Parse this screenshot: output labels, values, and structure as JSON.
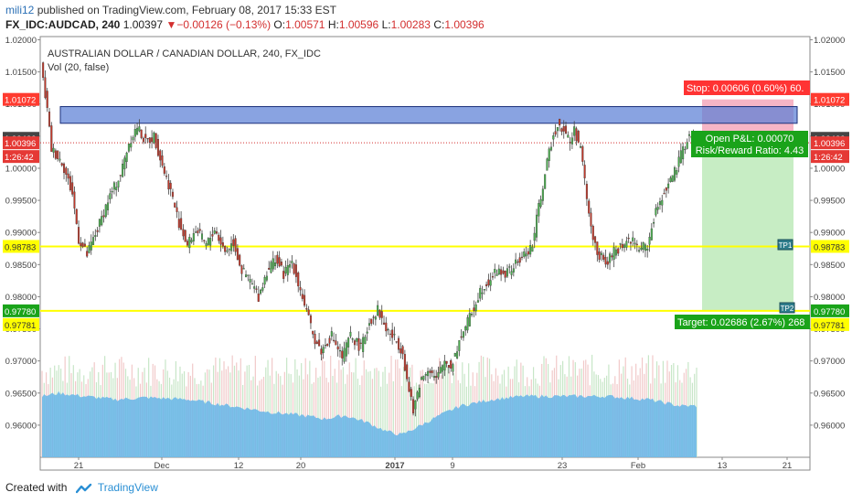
{
  "header": {
    "username": "mili12",
    "published_text": "published on TradingView.com, February 08, 2017 15:33 EST"
  },
  "ohlc": {
    "symbol": "FX_IDC:AUDCAD, 240",
    "last": "1.00397",
    "change": "−0.00126 (−0.13%)",
    "o_label": "O:",
    "o": "1.00571",
    "h_label": "H:",
    "h": "1.00596",
    "l_label": "L:",
    "l": "1.00283",
    "c_label": "C:",
    "c": "1.00396"
  },
  "footer": {
    "created_with": "Created with",
    "brand": "TradingView"
  },
  "colors": {
    "up": "#4caf50",
    "down": "#c0392b",
    "wick": "#444444",
    "vol_area": "#66b5e8",
    "resistance": "#5b7fd6",
    "support": "#ffff00",
    "target_zone": "#b9e8b5",
    "stop_zone": "#f4a3b8",
    "stop_label": "#ff3333",
    "target_label": "#1aa31a"
  },
  "chart_data": {
    "type": "candlestick",
    "title": "AUSTRALIAN DOLLAR / CANADIAN DOLLAR, 240, FX_IDC",
    "indicator": "Vol (20, false)",
    "ylim": [
      0.955,
      1.0205
    ],
    "yticks": [
      "1.02000",
      "1.01500",
      "1.01000",
      "1.00500",
      "1.00000",
      "0.99500",
      "0.99000",
      "0.98500",
      "0.98000",
      "0.97500",
      "0.97000",
      "0.96500",
      "0.96000"
    ],
    "xticks": [
      "21",
      "Dec",
      "12",
      "20",
      "2017",
      "9",
      "23",
      "Feb",
      "13",
      "21"
    ],
    "price_path": [
      [
        0,
        1.016
      ],
      [
        3,
        1.009
      ],
      [
        5,
        1.003
      ],
      [
        10,
        1.001
      ],
      [
        15,
        0.996
      ],
      [
        18,
        0.989
      ],
      [
        22,
        0.9865
      ],
      [
        27,
        0.9905
      ],
      [
        32,
        0.995
      ],
      [
        38,
        0.999
      ],
      [
        42,
        1.004
      ],
      [
        46,
        1.0065
      ],
      [
        50,
        1.004
      ],
      [
        54,
        1.005
      ],
      [
        58,
        1.0005
      ],
      [
        62,
        0.9965
      ],
      [
        66,
        0.9915
      ],
      [
        70,
        0.988
      ],
      [
        74,
        0.9905
      ],
      [
        79,
        0.988
      ],
      [
        83,
        0.9905
      ],
      [
        88,
        0.987
      ],
      [
        92,
        0.9885
      ],
      [
        96,
        0.984
      ],
      [
        100,
        0.9825
      ],
      [
        104,
        0.98
      ],
      [
        108,
        0.984
      ],
      [
        112,
        0.986
      ],
      [
        116,
        0.9835
      ],
      [
        120,
        0.9855
      ],
      [
        125,
        0.98
      ],
      [
        130,
        0.974
      ],
      [
        134,
        0.9715
      ],
      [
        139,
        0.974
      ],
      [
        144,
        0.9705
      ],
      [
        148,
        0.974
      ],
      [
        153,
        0.972
      ],
      [
        157,
        0.976
      ],
      [
        161,
        0.978
      ],
      [
        165,
        0.975
      ],
      [
        169,
        0.9735
      ],
      [
        173,
        0.9715
      ],
      [
        175,
        0.967
      ],
      [
        178,
        0.962
      ],
      [
        181,
        0.9665
      ],
      [
        185,
        0.969
      ],
      [
        189,
        0.967
      ],
      [
        193,
        0.97
      ],
      [
        196,
        0.969
      ],
      [
        201,
        0.974
      ],
      [
        206,
        0.9775
      ],
      [
        210,
        0.981
      ],
      [
        214,
        0.9825
      ],
      [
        218,
        0.984
      ],
      [
        222,
        0.9835
      ],
      [
        227,
        0.985
      ],
      [
        231,
        0.9865
      ],
      [
        235,
        0.988
      ],
      [
        238,
        0.994
      ],
      [
        241,
        0.999
      ],
      [
        244,
        1.004
      ],
      [
        247,
        1.007
      ],
      [
        250,
        1.006
      ],
      [
        253,
        1.004
      ],
      [
        255,
        1.006
      ],
      [
        258,
        1.003
      ],
      [
        260,
        0.998
      ],
      [
        263,
        0.9905
      ],
      [
        266,
        0.987
      ],
      [
        270,
        0.985
      ],
      [
        274,
        0.987
      ],
      [
        278,
        0.988
      ],
      [
        282,
        0.989
      ],
      [
        286,
        0.9875
      ],
      [
        290,
        0.988
      ],
      [
        293,
        0.992
      ],
      [
        296,
        0.995
      ],
      [
        300,
        0.9975
      ],
      [
        304,
        1.0
      ],
      [
        307,
        1.003
      ],
      [
        310,
        1.005
      ],
      [
        313,
        1.004
      ]
    ],
    "volume_area": [
      [
        0,
        0.9645
      ],
      [
        8,
        0.965
      ],
      [
        20,
        0.9645
      ],
      [
        35,
        0.964
      ],
      [
        50,
        0.9643
      ],
      [
        70,
        0.964
      ],
      [
        90,
        0.963
      ],
      [
        110,
        0.962
      ],
      [
        125,
        0.9615
      ],
      [
        135,
        0.961
      ],
      [
        145,
        0.9615
      ],
      [
        155,
        0.9605
      ],
      [
        165,
        0.959
      ],
      [
        172,
        0.9585
      ],
      [
        180,
        0.9598
      ],
      [
        190,
        0.9615
      ],
      [
        200,
        0.963
      ],
      [
        215,
        0.964
      ],
      [
        230,
        0.9645
      ],
      [
        250,
        0.9645
      ],
      [
        270,
        0.9645
      ],
      [
        290,
        0.964
      ],
      [
        305,
        0.963
      ],
      [
        313,
        0.963
      ]
    ],
    "resistance_zone": {
      "from": 1.007,
      "to": 1.0096
    },
    "support_lines": [
      0.98783,
      0.9778
    ],
    "current_price_line": 1.00396,
    "stop_level": 1.01072,
    "entry_level": 1.00466,
    "target_level": 0.97781,
    "position_labels": {
      "stop": "Stop: 0.00606 (0.60%) 60.",
      "open_pnl": "Open P&L: 0.00070",
      "risk_reward": "Risk/Reward Ratio: 4.43",
      "target": "Target: 0.02686 (2.67%) 268",
      "tp1": "TP1",
      "tp2": "TP2"
    },
    "price_badges": {
      "stop": "1.01072",
      "entry": "1.00466",
      "current": "1.00396",
      "countdown": "1:26:42",
      "tp1": "0.98783",
      "target_green": "0.97780",
      "target_yellow": "0.97781"
    }
  }
}
